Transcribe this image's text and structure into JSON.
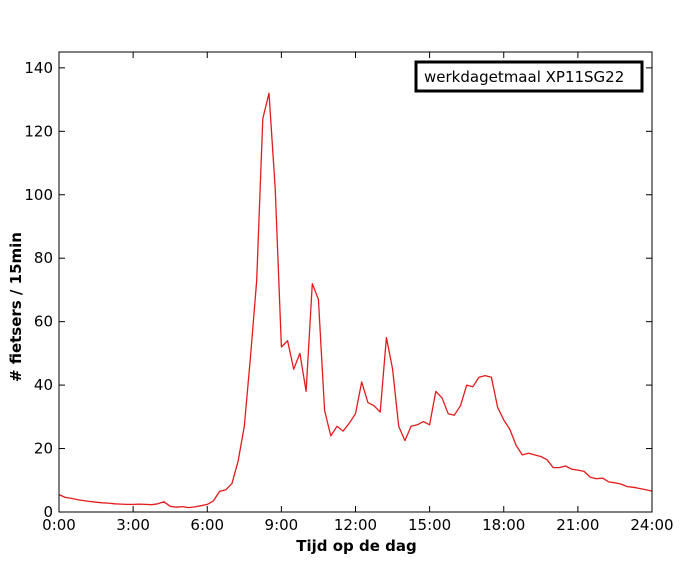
{
  "chart_data": {
    "type": "line",
    "title": "",
    "xlabel": "Tijd op de dag",
    "ylabel": "# fietsers / 15min",
    "xlim": [
      0,
      24
    ],
    "ylim": [
      0,
      145
    ],
    "grid": false,
    "legend_position": "top-right",
    "x_ticks": [
      {
        "value": 0,
        "label": "0:00"
      },
      {
        "value": 3,
        "label": "3:00"
      },
      {
        "value": 6,
        "label": "6:00"
      },
      {
        "value": 9,
        "label": "9:00"
      },
      {
        "value": 12,
        "label": "12:00"
      },
      {
        "value": 15,
        "label": "15:00"
      },
      {
        "value": 18,
        "label": "18:00"
      },
      {
        "value": 21,
        "label": "21:00"
      },
      {
        "value": 24,
        "label": "24:00"
      }
    ],
    "y_ticks": [
      {
        "value": 0,
        "label": "0"
      },
      {
        "value": 20,
        "label": "20"
      },
      {
        "value": 40,
        "label": "40"
      },
      {
        "value": 60,
        "label": "60"
      },
      {
        "value": 80,
        "label": "80"
      },
      {
        "value": 100,
        "label": "100"
      },
      {
        "value": 120,
        "label": "120"
      },
      {
        "value": 140,
        "label": "140"
      }
    ],
    "series": [
      {
        "name": "werkdagetmaal XP11SG22",
        "color": "#e41a1c",
        "x": [
          0,
          0.25,
          0.5,
          0.75,
          1,
          1.25,
          1.5,
          1.75,
          2,
          2.25,
          2.5,
          2.75,
          3,
          3.25,
          3.5,
          3.75,
          4,
          4.25,
          4.5,
          4.75,
          5,
          5.25,
          5.5,
          5.75,
          6,
          6.25,
          6.5,
          6.75,
          7,
          7.25,
          7.5,
          7.75,
          8,
          8.25,
          8.5,
          8.75,
          9,
          9.25,
          9.5,
          9.75,
          10,
          10.25,
          10.5,
          10.75,
          11,
          11.25,
          11.5,
          11.75,
          12,
          12.25,
          12.5,
          12.75,
          13,
          13.25,
          13.5,
          13.75,
          14,
          14.25,
          14.5,
          14.75,
          15,
          15.25,
          15.5,
          15.75,
          16,
          16.25,
          16.5,
          16.75,
          17,
          17.25,
          17.5,
          17.75,
          18,
          18.25,
          18.5,
          18.75,
          19,
          19.25,
          19.5,
          19.75,
          20,
          20.25,
          20.5,
          20.75,
          21,
          21.25,
          21.5,
          21.75,
          22,
          22.25,
          22.5,
          22.75,
          23,
          23.25,
          23.5,
          23.75,
          24
        ],
        "values": [
          5.5,
          4.6,
          4.3,
          3.9,
          3.6,
          3.3,
          3.1,
          2.9,
          2.8,
          2.6,
          2.5,
          2.4,
          2.4,
          2.5,
          2.4,
          2.3,
          2.6,
          3.2,
          1.8,
          1.5,
          1.7,
          1.4,
          1.6,
          2.0,
          2.4,
          3.5,
          6.5,
          7.0,
          9.0,
          16.0,
          27.0,
          49.0,
          73.0,
          124.0,
          132.0,
          102.0,
          52.0,
          54.0,
          45.0,
          50.0,
          38.0,
          72.0,
          67.0,
          32.0,
          24.0,
          27.0,
          25.5,
          28.0,
          31.0,
          41.0,
          34.5,
          33.5,
          31.5,
          55.0,
          45.0,
          27.0,
          22.5,
          27.0,
          27.5,
          28.5,
          27.5,
          38.0,
          36.0,
          31.0,
          30.5,
          33.5,
          40.0,
          39.5,
          42.5,
          43.0,
          42.5,
          33.0,
          29.0,
          26.0,
          21.0,
          18.0,
          18.5,
          18.0,
          17.5,
          16.5,
          14.0,
          14.0,
          14.5,
          13.5,
          13.2,
          12.8,
          11.0,
          10.5,
          10.7,
          9.5,
          9.2,
          8.8,
          8.0,
          7.8,
          7.4,
          7.0,
          6.6
        ]
      }
    ]
  }
}
